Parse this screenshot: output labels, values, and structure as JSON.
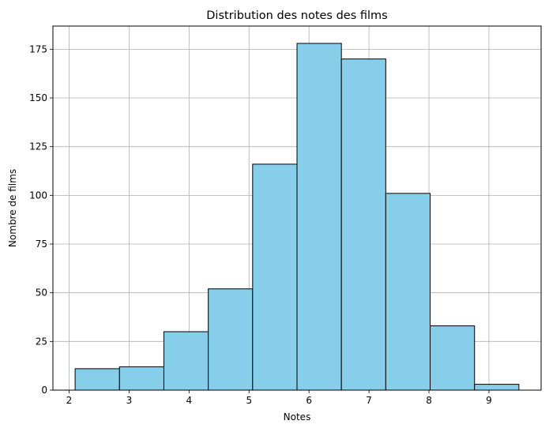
{
  "chart_data": {
    "type": "bar",
    "title": "Distribution des notes des films",
    "xlabel": "Notes",
    "ylabel": "Nombre de films",
    "bin_edges": [
      2.1,
      2.84,
      3.58,
      4.32,
      5.06,
      5.8,
      6.54,
      7.28,
      8.02,
      8.76,
      9.5
    ],
    "values": [
      11,
      12,
      30,
      52,
      116,
      178,
      170,
      101,
      33,
      3
    ],
    "xlim": [
      1.73,
      9.87
    ],
    "ylim": [
      0,
      186.9
    ],
    "xticks": [
      2,
      3,
      4,
      5,
      6,
      7,
      8,
      9
    ],
    "xtick_labels": [
      "2",
      "3",
      "4",
      "5",
      "6",
      "7",
      "8",
      "9"
    ],
    "yticks": [
      0,
      25,
      50,
      75,
      100,
      125,
      150,
      175
    ],
    "ytick_labels": [
      "0",
      "25",
      "50",
      "75",
      "100",
      "125",
      "150",
      "175"
    ],
    "grid": true,
    "bar_color": "#87CEEB",
    "edge_color": "#000000",
    "grid_color": "#b0b0b0"
  }
}
